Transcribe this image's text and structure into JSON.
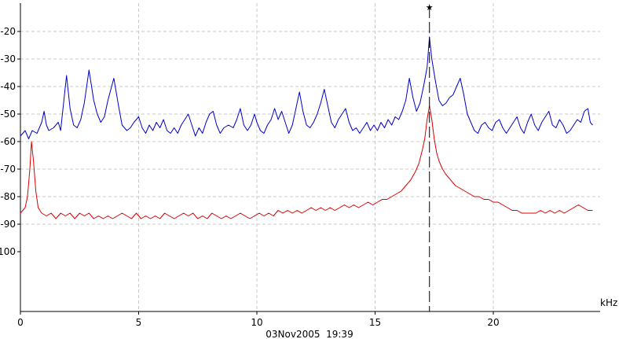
{
  "chart_data": {
    "type": "line",
    "title": "",
    "xlabel": "",
    "ylabel": "",
    "x_unit": "kHz",
    "xlim": [
      0,
      24.5
    ],
    "ylim": [
      -102,
      -14
    ],
    "x_ticks": [
      0,
      5,
      10,
      15,
      20
    ],
    "y_ticks": [
      -20,
      -30,
      -40,
      -50,
      -60,
      -70,
      -80,
      -90,
      -100
    ],
    "grid": true,
    "legend": "none",
    "timestamp": "03Nov2005  19:39",
    "marker": {
      "x": 17.3,
      "style": "dashed"
    },
    "series": [
      {
        "color": "#0000cc",
        "points": [
          [
            0.0,
            -58
          ],
          [
            0.2,
            -56
          ],
          [
            0.35,
            -59
          ],
          [
            0.5,
            -56
          ],
          [
            0.7,
            -57
          ],
          [
            0.9,
            -53
          ],
          [
            1.0,
            -49
          ],
          [
            1.1,
            -54
          ],
          [
            1.2,
            -56
          ],
          [
            1.4,
            -55
          ],
          [
            1.6,
            -53
          ],
          [
            1.7,
            -56
          ],
          [
            1.8,
            -48
          ],
          [
            1.95,
            -36
          ],
          [
            2.1,
            -48
          ],
          [
            2.25,
            -54
          ],
          [
            2.4,
            -55
          ],
          [
            2.55,
            -52
          ],
          [
            2.7,
            -46
          ],
          [
            2.9,
            -34
          ],
          [
            3.1,
            -45
          ],
          [
            3.25,
            -50
          ],
          [
            3.4,
            -53
          ],
          [
            3.55,
            -51
          ],
          [
            3.7,
            -45
          ],
          [
            3.95,
            -37
          ],
          [
            4.15,
            -47
          ],
          [
            4.3,
            -54
          ],
          [
            4.5,
            -56
          ],
          [
            4.65,
            -55
          ],
          [
            4.8,
            -53
          ],
          [
            5.0,
            -51
          ],
          [
            5.15,
            -55
          ],
          [
            5.3,
            -57
          ],
          [
            5.45,
            -54
          ],
          [
            5.6,
            -56
          ],
          [
            5.75,
            -53
          ],
          [
            5.9,
            -55
          ],
          [
            6.05,
            -52
          ],
          [
            6.2,
            -56
          ],
          [
            6.35,
            -57
          ],
          [
            6.5,
            -55
          ],
          [
            6.65,
            -57
          ],
          [
            6.8,
            -54
          ],
          [
            6.95,
            -52
          ],
          [
            7.1,
            -50
          ],
          [
            7.25,
            -54
          ],
          [
            7.4,
            -58
          ],
          [
            7.55,
            -55
          ],
          [
            7.7,
            -57
          ],
          [
            7.85,
            -53
          ],
          [
            8.0,
            -50
          ],
          [
            8.15,
            -49
          ],
          [
            8.3,
            -54
          ],
          [
            8.45,
            -57
          ],
          [
            8.6,
            -55
          ],
          [
            8.8,
            -54
          ],
          [
            9.0,
            -55
          ],
          [
            9.15,
            -52
          ],
          [
            9.3,
            -48
          ],
          [
            9.45,
            -54
          ],
          [
            9.6,
            -56
          ],
          [
            9.75,
            -54
          ],
          [
            9.9,
            -50
          ],
          [
            10.0,
            -53
          ],
          [
            10.15,
            -56
          ],
          [
            10.3,
            -57
          ],
          [
            10.45,
            -54
          ],
          [
            10.6,
            -52
          ],
          [
            10.75,
            -48
          ],
          [
            10.9,
            -52
          ],
          [
            11.05,
            -49
          ],
          [
            11.2,
            -53
          ],
          [
            11.35,
            -57
          ],
          [
            11.5,
            -54
          ],
          [
            11.65,
            -48
          ],
          [
            11.8,
            -42
          ],
          [
            11.95,
            -49
          ],
          [
            12.1,
            -54
          ],
          [
            12.25,
            -55
          ],
          [
            12.4,
            -53
          ],
          [
            12.55,
            -50
          ],
          [
            12.7,
            -46
          ],
          [
            12.85,
            -41
          ],
          [
            13.0,
            -47
          ],
          [
            13.15,
            -53
          ],
          [
            13.3,
            -55
          ],
          [
            13.45,
            -52
          ],
          [
            13.6,
            -50
          ],
          [
            13.75,
            -48
          ],
          [
            13.9,
            -53
          ],
          [
            14.05,
            -56
          ],
          [
            14.2,
            -55
          ],
          [
            14.35,
            -57
          ],
          [
            14.5,
            -55
          ],
          [
            14.65,
            -53
          ],
          [
            14.8,
            -56
          ],
          [
            14.95,
            -54
          ],
          [
            15.1,
            -56
          ],
          [
            15.25,
            -53
          ],
          [
            15.4,
            -55
          ],
          [
            15.55,
            -52
          ],
          [
            15.7,
            -54
          ],
          [
            15.85,
            -51
          ],
          [
            16.0,
            -52
          ],
          [
            16.15,
            -49
          ],
          [
            16.3,
            -45
          ],
          [
            16.45,
            -37
          ],
          [
            16.6,
            -44
          ],
          [
            16.75,
            -49
          ],
          [
            16.9,
            -46
          ],
          [
            17.05,
            -40
          ],
          [
            17.2,
            -33
          ],
          [
            17.3,
            -22
          ],
          [
            17.4,
            -30
          ],
          [
            17.55,
            -38
          ],
          [
            17.7,
            -45
          ],
          [
            17.85,
            -47
          ],
          [
            18.0,
            -46
          ],
          [
            18.15,
            -44
          ],
          [
            18.3,
            -43
          ],
          [
            18.45,
            -40
          ],
          [
            18.6,
            -37
          ],
          [
            18.75,
            -43
          ],
          [
            18.9,
            -50
          ],
          [
            19.05,
            -53
          ],
          [
            19.2,
            -56
          ],
          [
            19.35,
            -57
          ],
          [
            19.5,
            -54
          ],
          [
            19.65,
            -53
          ],
          [
            19.8,
            -55
          ],
          [
            19.95,
            -56
          ],
          [
            20.1,
            -53
          ],
          [
            20.25,
            -52
          ],
          [
            20.4,
            -55
          ],
          [
            20.55,
            -57
          ],
          [
            20.7,
            -55
          ],
          [
            20.85,
            -53
          ],
          [
            21.0,
            -51
          ],
          [
            21.15,
            -55
          ],
          [
            21.3,
            -57
          ],
          [
            21.45,
            -53
          ],
          [
            21.6,
            -50
          ],
          [
            21.75,
            -54
          ],
          [
            21.9,
            -56
          ],
          [
            22.05,
            -53
          ],
          [
            22.2,
            -51
          ],
          [
            22.35,
            -49
          ],
          [
            22.5,
            -54
          ],
          [
            22.65,
            -55
          ],
          [
            22.8,
            -52
          ],
          [
            22.95,
            -54
          ],
          [
            23.1,
            -57
          ],
          [
            23.25,
            -56
          ],
          [
            23.4,
            -54
          ],
          [
            23.55,
            -52
          ],
          [
            23.7,
            -53
          ],
          [
            23.85,
            -49
          ],
          [
            24.0,
            -48
          ],
          [
            24.1,
            -53
          ],
          [
            24.2,
            -54
          ]
        ]
      },
      {
        "color": "#dd0000",
        "points": [
          [
            0.0,
            -86
          ],
          [
            0.1,
            -85
          ],
          [
            0.2,
            -84
          ],
          [
            0.3,
            -80
          ],
          [
            0.4,
            -70
          ],
          [
            0.47,
            -60
          ],
          [
            0.55,
            -67
          ],
          [
            0.65,
            -78
          ],
          [
            0.75,
            -84
          ],
          [
            0.9,
            -86
          ],
          [
            1.1,
            -87
          ],
          [
            1.3,
            -86
          ],
          [
            1.5,
            -88
          ],
          [
            1.7,
            -86
          ],
          [
            1.9,
            -87
          ],
          [
            2.1,
            -86
          ],
          [
            2.3,
            -88
          ],
          [
            2.5,
            -86
          ],
          [
            2.7,
            -87
          ],
          [
            2.9,
            -86
          ],
          [
            3.1,
            -88
          ],
          [
            3.3,
            -87
          ],
          [
            3.5,
            -88
          ],
          [
            3.7,
            -87
          ],
          [
            3.9,
            -88
          ],
          [
            4.1,
            -87
          ],
          [
            4.3,
            -86
          ],
          [
            4.5,
            -87
          ],
          [
            4.7,
            -88
          ],
          [
            4.9,
            -86
          ],
          [
            5.1,
            -88
          ],
          [
            5.3,
            -87
          ],
          [
            5.5,
            -88
          ],
          [
            5.7,
            -87
          ],
          [
            5.9,
            -88
          ],
          [
            6.1,
            -86
          ],
          [
            6.3,
            -87
          ],
          [
            6.5,
            -88
          ],
          [
            6.7,
            -87
          ],
          [
            6.9,
            -86
          ],
          [
            7.1,
            -87
          ],
          [
            7.3,
            -86
          ],
          [
            7.5,
            -88
          ],
          [
            7.7,
            -87
          ],
          [
            7.9,
            -88
          ],
          [
            8.1,
            -86
          ],
          [
            8.3,
            -87
          ],
          [
            8.5,
            -88
          ],
          [
            8.7,
            -87
          ],
          [
            8.9,
            -88
          ],
          [
            9.1,
            -87
          ],
          [
            9.3,
            -86
          ],
          [
            9.5,
            -87
          ],
          [
            9.7,
            -88
          ],
          [
            9.9,
            -87
          ],
          [
            10.1,
            -86
          ],
          [
            10.3,
            -87
          ],
          [
            10.5,
            -86
          ],
          [
            10.7,
            -87
          ],
          [
            10.9,
            -85
          ],
          [
            11.1,
            -86
          ],
          [
            11.3,
            -85
          ],
          [
            11.5,
            -86
          ],
          [
            11.7,
            -85
          ],
          [
            11.9,
            -86
          ],
          [
            12.1,
            -85
          ],
          [
            12.3,
            -84
          ],
          [
            12.5,
            -85
          ],
          [
            12.7,
            -84
          ],
          [
            12.9,
            -85
          ],
          [
            13.1,
            -84
          ],
          [
            13.3,
            -85
          ],
          [
            13.5,
            -84
          ],
          [
            13.7,
            -83
          ],
          [
            13.9,
            -84
          ],
          [
            14.1,
            -83
          ],
          [
            14.3,
            -84
          ],
          [
            14.5,
            -83
          ],
          [
            14.7,
            -82
          ],
          [
            14.9,
            -83
          ],
          [
            15.1,
            -82
          ],
          [
            15.3,
            -81
          ],
          [
            15.5,
            -81
          ],
          [
            15.7,
            -80
          ],
          [
            15.9,
            -79
          ],
          [
            16.1,
            -78
          ],
          [
            16.3,
            -76
          ],
          [
            16.5,
            -74
          ],
          [
            16.7,
            -71
          ],
          [
            16.85,
            -68
          ],
          [
            17.0,
            -63
          ],
          [
            17.1,
            -59
          ],
          [
            17.2,
            -52
          ],
          [
            17.3,
            -47
          ],
          [
            17.4,
            -52
          ],
          [
            17.5,
            -59
          ],
          [
            17.6,
            -64
          ],
          [
            17.7,
            -67
          ],
          [
            17.85,
            -70
          ],
          [
            18.0,
            -72
          ],
          [
            18.2,
            -74
          ],
          [
            18.4,
            -76
          ],
          [
            18.6,
            -77
          ],
          [
            18.8,
            -78
          ],
          [
            19.0,
            -79
          ],
          [
            19.2,
            -80
          ],
          [
            19.4,
            -80
          ],
          [
            19.6,
            -81
          ],
          [
            19.8,
            -81
          ],
          [
            20.0,
            -82
          ],
          [
            20.2,
            -82
          ],
          [
            20.4,
            -83
          ],
          [
            20.6,
            -84
          ],
          [
            20.8,
            -85
          ],
          [
            21.0,
            -85
          ],
          [
            21.2,
            -86
          ],
          [
            21.4,
            -86
          ],
          [
            21.6,
            -86
          ],
          [
            21.8,
            -86
          ],
          [
            22.0,
            -85
          ],
          [
            22.2,
            -86
          ],
          [
            22.4,
            -85
          ],
          [
            22.6,
            -86
          ],
          [
            22.8,
            -85
          ],
          [
            23.0,
            -86
          ],
          [
            23.2,
            -85
          ],
          [
            23.4,
            -84
          ],
          [
            23.6,
            -83
          ],
          [
            23.8,
            -84
          ],
          [
            24.0,
            -85
          ],
          [
            24.2,
            -85
          ]
        ]
      }
    ]
  }
}
